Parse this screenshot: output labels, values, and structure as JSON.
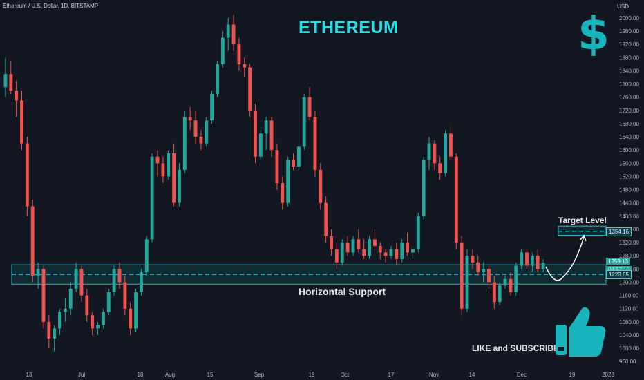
{
  "header": {
    "symbol_label": "Ethereum / U.S. Dollar, 1D, BITSTAMP",
    "currency": "USD"
  },
  "annotations": {
    "title": "ETHEREUM",
    "support_text": "Horizontal Support",
    "target_text": "Target Level",
    "cta_text": "LIKE and SUBSCRIBE",
    "dollar_symbol": "$"
  },
  "colors": {
    "background": "#131722",
    "up": "#26a69a",
    "down": "#ef5350",
    "accent": "#26e0e8",
    "zone_fill": "#0e3a44",
    "zone_border": "#1fb8c4"
  },
  "icons": [
    "dollar-icon",
    "thumbs-up-icon"
  ],
  "price_tags": {
    "target": "1354.16",
    "current": "1259.13",
    "countdown": "08:57:10",
    "support": "1223.65"
  },
  "chart_data": {
    "type": "candlestick",
    "title": "ETHEREUM",
    "ylim": [
      950,
      2025
    ],
    "y_ticks": [
      960,
      1000,
      1040,
      1080,
      1120,
      1160,
      1200,
      1240,
      1280,
      1320,
      1360,
      1400,
      1440,
      1480,
      1520,
      1560,
      1600,
      1640,
      1680,
      1720,
      1760,
      1800,
      1840,
      1880,
      1920,
      1960,
      2000
    ],
    "x_ticks": [
      "13",
      "Jul",
      "18",
      "Aug",
      "15",
      "Sep",
      "19",
      "Oct",
      "17",
      "Nov",
      "14",
      "Dec",
      "19",
      "2023"
    ],
    "support_level": 1223.65,
    "support_zone": [
      1194,
      1253
    ],
    "target_level": 1354.16,
    "target_zone": [
      1342,
      1370
    ],
    "last_price": 1259.13,
    "candles": [
      {
        "o": 1790,
        "h": 1880,
        "l": 1760,
        "c": 1830
      },
      {
        "o": 1830,
        "h": 1870,
        "l": 1770,
        "c": 1780
      },
      {
        "o": 1780,
        "h": 1810,
        "l": 1700,
        "c": 1750
      },
      {
        "o": 1750,
        "h": 1780,
        "l": 1600,
        "c": 1620
      },
      {
        "o": 1620,
        "h": 1640,
        "l": 1400,
        "c": 1430
      },
      {
        "o": 1430,
        "h": 1450,
        "l": 1200,
        "c": 1220
      },
      {
        "o": 1220,
        "h": 1260,
        "l": 1180,
        "c": 1240
      },
      {
        "o": 1240,
        "h": 1250,
        "l": 1060,
        "c": 1080
      },
      {
        "o": 1080,
        "h": 1100,
        "l": 1000,
        "c": 1030
      },
      {
        "o": 1030,
        "h": 1070,
        "l": 990,
        "c": 1060
      },
      {
        "o": 1060,
        "h": 1120,
        "l": 1040,
        "c": 1110
      },
      {
        "o": 1110,
        "h": 1150,
        "l": 1080,
        "c": 1120
      },
      {
        "o": 1120,
        "h": 1200,
        "l": 1100,
        "c": 1180
      },
      {
        "o": 1180,
        "h": 1260,
        "l": 1170,
        "c": 1240
      },
      {
        "o": 1240,
        "h": 1250,
        "l": 1140,
        "c": 1160
      },
      {
        "o": 1160,
        "h": 1180,
        "l": 1080,
        "c": 1100
      },
      {
        "o": 1100,
        "h": 1110,
        "l": 1040,
        "c": 1060
      },
      {
        "o": 1060,
        "h": 1080,
        "l": 1040,
        "c": 1070
      },
      {
        "o": 1070,
        "h": 1120,
        "l": 1060,
        "c": 1110
      },
      {
        "o": 1110,
        "h": 1180,
        "l": 1100,
        "c": 1170
      },
      {
        "o": 1170,
        "h": 1250,
        "l": 1160,
        "c": 1240
      },
      {
        "o": 1240,
        "h": 1260,
        "l": 1180,
        "c": 1200
      },
      {
        "o": 1200,
        "h": 1220,
        "l": 1100,
        "c": 1120
      },
      {
        "o": 1120,
        "h": 1140,
        "l": 1040,
        "c": 1060
      },
      {
        "o": 1060,
        "h": 1180,
        "l": 1050,
        "c": 1170
      },
      {
        "o": 1170,
        "h": 1240,
        "l": 1160,
        "c": 1230
      },
      {
        "o": 1230,
        "h": 1340,
        "l": 1220,
        "c": 1330
      },
      {
        "o": 1330,
        "h": 1590,
        "l": 1320,
        "c": 1580
      },
      {
        "o": 1580,
        "h": 1600,
        "l": 1520,
        "c": 1560
      },
      {
        "o": 1560,
        "h": 1580,
        "l": 1500,
        "c": 1520
      },
      {
        "o": 1520,
        "h": 1600,
        "l": 1510,
        "c": 1590
      },
      {
        "o": 1590,
        "h": 1620,
        "l": 1430,
        "c": 1440
      },
      {
        "o": 1440,
        "h": 1560,
        "l": 1430,
        "c": 1540
      },
      {
        "o": 1540,
        "h": 1720,
        "l": 1530,
        "c": 1700
      },
      {
        "o": 1700,
        "h": 1730,
        "l": 1660,
        "c": 1690
      },
      {
        "o": 1690,
        "h": 1720,
        "l": 1620,
        "c": 1640
      },
      {
        "o": 1640,
        "h": 1660,
        "l": 1600,
        "c": 1620
      },
      {
        "o": 1620,
        "h": 1700,
        "l": 1610,
        "c": 1690
      },
      {
        "o": 1690,
        "h": 1780,
        "l": 1680,
        "c": 1770
      },
      {
        "o": 1770,
        "h": 1870,
        "l": 1760,
        "c": 1860
      },
      {
        "o": 1860,
        "h": 1960,
        "l": 1850,
        "c": 1940
      },
      {
        "o": 1940,
        "h": 2000,
        "l": 1900,
        "c": 1980
      },
      {
        "o": 1980,
        "h": 2010,
        "l": 1900,
        "c": 1920
      },
      {
        "o": 1920,
        "h": 1940,
        "l": 1840,
        "c": 1860
      },
      {
        "o": 1860,
        "h": 1880,
        "l": 1820,
        "c": 1850
      },
      {
        "o": 1850,
        "h": 1860,
        "l": 1700,
        "c": 1720
      },
      {
        "o": 1720,
        "h": 1740,
        "l": 1560,
        "c": 1580
      },
      {
        "o": 1580,
        "h": 1660,
        "l": 1570,
        "c": 1650
      },
      {
        "o": 1650,
        "h": 1700,
        "l": 1600,
        "c": 1690
      },
      {
        "o": 1690,
        "h": 1700,
        "l": 1580,
        "c": 1600
      },
      {
        "o": 1600,
        "h": 1620,
        "l": 1480,
        "c": 1500
      },
      {
        "o": 1500,
        "h": 1520,
        "l": 1420,
        "c": 1440
      },
      {
        "o": 1440,
        "h": 1580,
        "l": 1430,
        "c": 1570
      },
      {
        "o": 1570,
        "h": 1590,
        "l": 1540,
        "c": 1550
      },
      {
        "o": 1550,
        "h": 1620,
        "l": 1540,
        "c": 1610
      },
      {
        "o": 1610,
        "h": 1770,
        "l": 1600,
        "c": 1760
      },
      {
        "o": 1760,
        "h": 1790,
        "l": 1690,
        "c": 1700
      },
      {
        "o": 1700,
        "h": 1720,
        "l": 1520,
        "c": 1540
      },
      {
        "o": 1540,
        "h": 1560,
        "l": 1420,
        "c": 1440
      },
      {
        "o": 1440,
        "h": 1460,
        "l": 1320,
        "c": 1340
      },
      {
        "o": 1340,
        "h": 1360,
        "l": 1280,
        "c": 1300
      },
      {
        "o": 1300,
        "h": 1320,
        "l": 1240,
        "c": 1260
      },
      {
        "o": 1260,
        "h": 1330,
        "l": 1250,
        "c": 1320
      },
      {
        "o": 1320,
        "h": 1340,
        "l": 1280,
        "c": 1290
      },
      {
        "o": 1290,
        "h": 1340,
        "l": 1280,
        "c": 1330
      },
      {
        "o": 1330,
        "h": 1360,
        "l": 1290,
        "c": 1300
      },
      {
        "o": 1300,
        "h": 1330,
        "l": 1270,
        "c": 1280
      },
      {
        "o": 1280,
        "h": 1340,
        "l": 1270,
        "c": 1330
      },
      {
        "o": 1330,
        "h": 1360,
        "l": 1300,
        "c": 1310
      },
      {
        "o": 1310,
        "h": 1320,
        "l": 1270,
        "c": 1290
      },
      {
        "o": 1290,
        "h": 1300,
        "l": 1260,
        "c": 1280
      },
      {
        "o": 1280,
        "h": 1310,
        "l": 1270,
        "c": 1300
      },
      {
        "o": 1300,
        "h": 1320,
        "l": 1250,
        "c": 1270
      },
      {
        "o": 1270,
        "h": 1330,
        "l": 1260,
        "c": 1320
      },
      {
        "o": 1320,
        "h": 1350,
        "l": 1280,
        "c": 1290
      },
      {
        "o": 1290,
        "h": 1310,
        "l": 1270,
        "c": 1300
      },
      {
        "o": 1300,
        "h": 1410,
        "l": 1290,
        "c": 1400
      },
      {
        "o": 1400,
        "h": 1580,
        "l": 1390,
        "c": 1570
      },
      {
        "o": 1570,
        "h": 1640,
        "l": 1540,
        "c": 1620
      },
      {
        "o": 1620,
        "h": 1630,
        "l": 1540,
        "c": 1560
      },
      {
        "o": 1560,
        "h": 1580,
        "l": 1510,
        "c": 1530
      },
      {
        "o": 1530,
        "h": 1660,
        "l": 1520,
        "c": 1650
      },
      {
        "o": 1650,
        "h": 1670,
        "l": 1570,
        "c": 1580
      },
      {
        "o": 1580,
        "h": 1590,
        "l": 1300,
        "c": 1320
      },
      {
        "o": 1320,
        "h": 1340,
        "l": 1100,
        "c": 1120
      },
      {
        "o": 1120,
        "h": 1300,
        "l": 1110,
        "c": 1280
      },
      {
        "o": 1280,
        "h": 1300,
        "l": 1240,
        "c": 1260
      },
      {
        "o": 1260,
        "h": 1280,
        "l": 1220,
        "c": 1230
      },
      {
        "o": 1230,
        "h": 1260,
        "l": 1200,
        "c": 1240
      },
      {
        "o": 1240,
        "h": 1250,
        "l": 1180,
        "c": 1200
      },
      {
        "o": 1200,
        "h": 1220,
        "l": 1120,
        "c": 1140
      },
      {
        "o": 1140,
        "h": 1200,
        "l": 1130,
        "c": 1190
      },
      {
        "o": 1190,
        "h": 1220,
        "l": 1180,
        "c": 1210
      },
      {
        "o": 1210,
        "h": 1230,
        "l": 1160,
        "c": 1170
      },
      {
        "o": 1170,
        "h": 1260,
        "l": 1160,
        "c": 1250
      },
      {
        "o": 1250,
        "h": 1300,
        "l": 1240,
        "c": 1290
      },
      {
        "o": 1290,
        "h": 1300,
        "l": 1240,
        "c": 1250
      },
      {
        "o": 1250,
        "h": 1290,
        "l": 1230,
        "c": 1280
      },
      {
        "o": 1280,
        "h": 1300,
        "l": 1230,
        "c": 1240
      },
      {
        "o": 1240,
        "h": 1270,
        "l": 1230,
        "c": 1259
      }
    ]
  }
}
